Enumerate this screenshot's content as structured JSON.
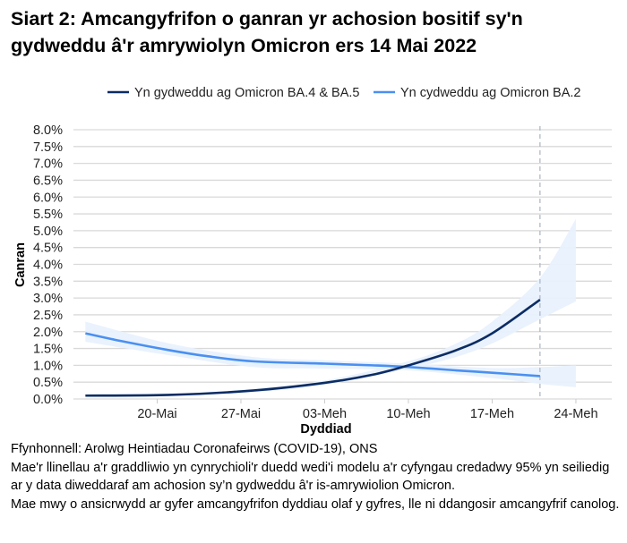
{
  "chart_data": {
    "type": "line",
    "title": "Siart 2: Amcangyfrifon o ganran yr achosion bositif sy'n gydweddu â'r amrywiolyn Omicron ers 14 Mai 2022",
    "xlabel": "Dyddiad",
    "ylabel": "Canran",
    "ylim": [
      0,
      8
    ],
    "yticks": [
      "0.0%",
      "0.5%",
      "1.0%",
      "1.5%",
      "2.0%",
      "2.5%",
      "3.0%",
      "3.5%",
      "4.0%",
      "4.5%",
      "5.0%",
      "5.5%",
      "6.0%",
      "6.5%",
      "7.0%",
      "7.5%",
      "8.0%"
    ],
    "xticks": [
      {
        "date": "2022-05-20",
        "label": "20-Mai"
      },
      {
        "date": "2022-05-27",
        "label": "27-Mai"
      },
      {
        "date": "2022-06-03",
        "label": "03-Meh"
      },
      {
        "date": "2022-06-10",
        "label": "10-Meh"
      },
      {
        "date": "2022-06-17",
        "label": "17-Meh"
      },
      {
        "date": "2022-06-24",
        "label": "24-Meh"
      }
    ],
    "xlim": [
      "2022-05-13",
      "2022-06-27"
    ],
    "reference_line_date": "2022-06-21",
    "grid": "horizontal",
    "legend_position": "top-right",
    "series": [
      {
        "name": "Yn gydweddu ag Omicron BA.4 & BA.5",
        "color": "#0b2c63",
        "points": [
          [
            "2022-05-14",
            0.1
          ],
          [
            "2022-05-21",
            0.12
          ],
          [
            "2022-05-28",
            0.25
          ],
          [
            "2022-06-03",
            0.48
          ],
          [
            "2022-06-07",
            0.72
          ],
          [
            "2022-06-10",
            1.0
          ],
          [
            "2022-06-14",
            1.45
          ],
          [
            "2022-06-17",
            1.95
          ],
          [
            "2022-06-21",
            2.95
          ]
        ],
        "interval": [
          [
            "2022-05-14",
            0.08,
            0.12
          ],
          [
            "2022-05-21",
            0.1,
            0.15
          ],
          [
            "2022-05-28",
            0.2,
            0.3
          ],
          [
            "2022-06-03",
            0.42,
            0.55
          ],
          [
            "2022-06-10",
            0.9,
            1.12
          ],
          [
            "2022-06-14",
            1.25,
            1.65
          ],
          [
            "2022-06-17",
            1.65,
            2.3
          ],
          [
            "2022-06-21",
            2.37,
            3.6
          ],
          [
            "2022-06-24",
            2.9,
            5.35
          ]
        ]
      },
      {
        "name": "Yn cydweddu ag Omicron BA.2",
        "color": "#4a90f0",
        "points": [
          [
            "2022-05-14",
            1.95
          ],
          [
            "2022-05-17",
            1.72
          ],
          [
            "2022-05-21",
            1.45
          ],
          [
            "2022-05-24",
            1.28
          ],
          [
            "2022-05-28",
            1.12
          ],
          [
            "2022-06-03",
            1.05
          ],
          [
            "2022-06-07",
            1.0
          ],
          [
            "2022-06-10",
            0.95
          ],
          [
            "2022-06-14",
            0.85
          ],
          [
            "2022-06-17",
            0.78
          ],
          [
            "2022-06-21",
            0.68
          ]
        ],
        "interval": [
          [
            "2022-05-14",
            1.7,
            2.3
          ],
          [
            "2022-05-21",
            1.3,
            1.65
          ],
          [
            "2022-05-28",
            0.95,
            1.25
          ],
          [
            "2022-06-03",
            0.9,
            1.15
          ],
          [
            "2022-06-10",
            0.85,
            1.05
          ],
          [
            "2022-06-17",
            0.62,
            0.92
          ],
          [
            "2022-06-21",
            0.45,
            0.95
          ],
          [
            "2022-06-24",
            0.35,
            1.0
          ]
        ]
      }
    ],
    "band_color": "#e8f1fd"
  },
  "notes": [
    "Ffynhonnell: Arolwg Heintiadau Coronafeirws (COVID-19), ONS",
    "Mae'r llinellau a'r graddliwio yn cynrychioli'r duedd wedi'i modelu a'r cyfyngau credadwy 95% yn seiliedig ar y data diweddaraf am achosion sy’n gydweddu â'r is-amrywiolion Omicron.",
    "Mae mwy o ansicrwydd ar gyfer amcangyfrifon dyddiau olaf y gyfres, lle ni ddangosir amcangyfrif canolog."
  ]
}
